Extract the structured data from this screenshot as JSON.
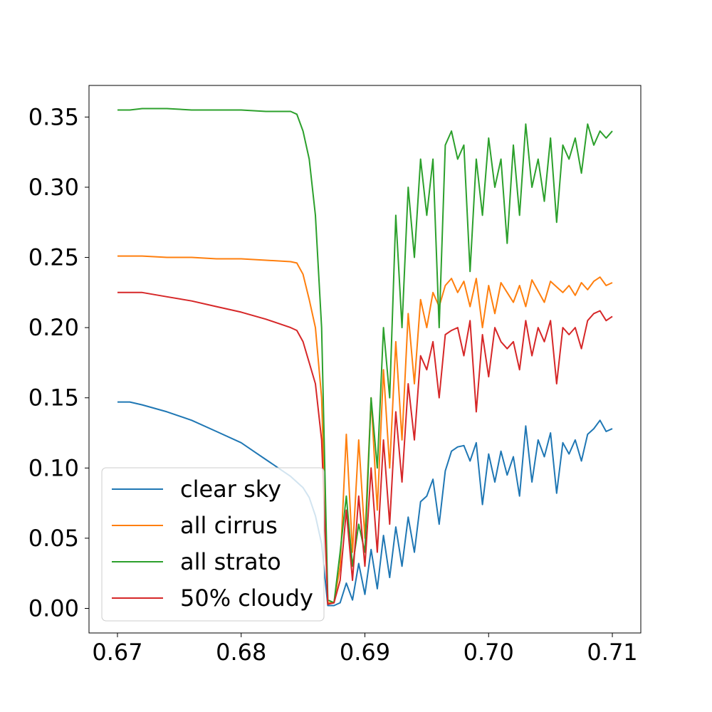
{
  "chart_data": {
    "type": "line",
    "title": "",
    "xlabel": "",
    "ylabel": "",
    "xlim": [
      0.6677,
      0.7123
    ],
    "ylim": [
      -0.0175,
      0.3725
    ],
    "xticks": [
      0.67,
      0.68,
      0.69,
      0.7,
      0.71
    ],
    "xtick_labels": [
      "0.67",
      "0.68",
      "0.69",
      "0.70",
      "0.71"
    ],
    "yticks": [
      0.0,
      0.05,
      0.1,
      0.15,
      0.2,
      0.25,
      0.3,
      0.35
    ],
    "ytick_labels": [
      "0.00",
      "0.05",
      "0.10",
      "0.15",
      "0.20",
      "0.25",
      "0.30",
      "0.35"
    ],
    "grid": false,
    "legend_position": "lower-left",
    "series": [
      {
        "name": "clear sky",
        "color": "#1f77b4",
        "x": [
          0.67,
          0.671,
          0.672,
          0.674,
          0.676,
          0.678,
          0.68,
          0.681,
          0.682,
          0.683,
          0.684,
          0.685,
          0.6855,
          0.686,
          0.6865,
          0.687,
          0.6875,
          0.688,
          0.6885,
          0.689,
          0.6895,
          0.69,
          0.6905,
          0.691,
          0.6915,
          0.692,
          0.6925,
          0.693,
          0.6935,
          0.694,
          0.6945,
          0.695,
          0.6955,
          0.696,
          0.6965,
          0.697,
          0.6975,
          0.698,
          0.6985,
          0.699,
          0.6995,
          0.7,
          0.7005,
          0.701,
          0.7015,
          0.702,
          0.7025,
          0.703,
          0.7035,
          0.704,
          0.7045,
          0.705,
          0.7055,
          0.706,
          0.7065,
          0.707,
          0.7075,
          0.708,
          0.7085,
          0.709,
          0.7095,
          0.71
        ],
        "y": [
          0.147,
          0.147,
          0.145,
          0.14,
          0.134,
          0.126,
          0.118,
          0.112,
          0.106,
          0.1,
          0.094,
          0.086,
          0.079,
          0.066,
          0.046,
          0.002,
          0.002,
          0.004,
          0.018,
          0.006,
          0.032,
          0.01,
          0.042,
          0.014,
          0.052,
          0.022,
          0.058,
          0.03,
          0.065,
          0.04,
          0.076,
          0.08,
          0.092,
          0.06,
          0.098,
          0.112,
          0.115,
          0.116,
          0.105,
          0.118,
          0.074,
          0.11,
          0.09,
          0.112,
          0.095,
          0.108,
          0.08,
          0.13,
          0.09,
          0.12,
          0.108,
          0.125,
          0.082,
          0.118,
          0.11,
          0.12,
          0.105,
          0.124,
          0.128,
          0.134,
          0.126,
          0.128
        ]
      },
      {
        "name": "all cirrus",
        "color": "#ff7f0e",
        "x": [
          0.67,
          0.671,
          0.672,
          0.674,
          0.676,
          0.678,
          0.68,
          0.682,
          0.684,
          0.6845,
          0.685,
          0.6855,
          0.686,
          0.6865,
          0.687,
          0.6875,
          0.688,
          0.6885,
          0.689,
          0.6895,
          0.69,
          0.6905,
          0.691,
          0.6915,
          0.692,
          0.6925,
          0.693,
          0.6935,
          0.694,
          0.6945,
          0.695,
          0.6955,
          0.696,
          0.6965,
          0.697,
          0.6975,
          0.698,
          0.6985,
          0.699,
          0.6995,
          0.7,
          0.7005,
          0.701,
          0.7015,
          0.702,
          0.7025,
          0.703,
          0.7035,
          0.704,
          0.7045,
          0.705,
          0.7055,
          0.706,
          0.7065,
          0.707,
          0.7075,
          0.708,
          0.7085,
          0.709,
          0.7095,
          0.71
        ],
        "y": [
          0.251,
          0.251,
          0.251,
          0.25,
          0.25,
          0.249,
          0.249,
          0.248,
          0.247,
          0.246,
          0.238,
          0.22,
          0.2,
          0.15,
          0.004,
          0.004,
          0.03,
          0.124,
          0.04,
          0.12,
          0.05,
          0.15,
          0.07,
          0.17,
          0.1,
          0.19,
          0.12,
          0.21,
          0.16,
          0.22,
          0.2,
          0.225,
          0.215,
          0.23,
          0.235,
          0.225,
          0.233,
          0.215,
          0.235,
          0.2,
          0.23,
          0.21,
          0.232,
          0.225,
          0.218,
          0.23,
          0.215,
          0.234,
          0.226,
          0.218,
          0.233,
          0.229,
          0.225,
          0.23,
          0.223,
          0.232,
          0.227,
          0.233,
          0.236,
          0.23,
          0.232
        ]
      },
      {
        "name": "all strato",
        "color": "#2ca02c",
        "x": [
          0.67,
          0.671,
          0.672,
          0.674,
          0.676,
          0.678,
          0.68,
          0.682,
          0.684,
          0.6845,
          0.685,
          0.6855,
          0.686,
          0.6865,
          0.687,
          0.6875,
          0.688,
          0.6885,
          0.689,
          0.6895,
          0.69,
          0.6905,
          0.691,
          0.6915,
          0.692,
          0.6925,
          0.693,
          0.6935,
          0.694,
          0.6945,
          0.695,
          0.6955,
          0.696,
          0.6965,
          0.697,
          0.6975,
          0.698,
          0.6985,
          0.699,
          0.6995,
          0.7,
          0.7005,
          0.701,
          0.7015,
          0.702,
          0.7025,
          0.703,
          0.7035,
          0.704,
          0.7045,
          0.705,
          0.7055,
          0.706,
          0.7065,
          0.707,
          0.7075,
          0.708,
          0.7085,
          0.709,
          0.7095,
          0.71
        ],
        "y": [
          0.355,
          0.355,
          0.356,
          0.356,
          0.355,
          0.355,
          0.355,
          0.354,
          0.354,
          0.352,
          0.34,
          0.32,
          0.28,
          0.2,
          0.006,
          0.004,
          0.04,
          0.08,
          0.03,
          0.06,
          0.04,
          0.15,
          0.1,
          0.2,
          0.15,
          0.28,
          0.2,
          0.3,
          0.25,
          0.32,
          0.28,
          0.32,
          0.2,
          0.33,
          0.34,
          0.32,
          0.33,
          0.24,
          0.32,
          0.28,
          0.335,
          0.3,
          0.32,
          0.26,
          0.33,
          0.28,
          0.345,
          0.3,
          0.32,
          0.29,
          0.335,
          0.275,
          0.33,
          0.32,
          0.335,
          0.31,
          0.345,
          0.33,
          0.34,
          0.335,
          0.34
        ]
      },
      {
        "name": "50% cloudy",
        "color": "#d62728",
        "x": [
          0.67,
          0.671,
          0.672,
          0.674,
          0.676,
          0.678,
          0.68,
          0.682,
          0.683,
          0.684,
          0.6845,
          0.685,
          0.6855,
          0.686,
          0.6865,
          0.687,
          0.6875,
          0.688,
          0.6885,
          0.689,
          0.6895,
          0.69,
          0.6905,
          0.691,
          0.6915,
          0.692,
          0.6925,
          0.693,
          0.6935,
          0.694,
          0.6945,
          0.695,
          0.6955,
          0.696,
          0.6965,
          0.697,
          0.6975,
          0.698,
          0.6985,
          0.699,
          0.6995,
          0.7,
          0.7005,
          0.701,
          0.7015,
          0.702,
          0.7025,
          0.703,
          0.7035,
          0.704,
          0.7045,
          0.705,
          0.7055,
          0.706,
          0.7065,
          0.707,
          0.7075,
          0.708,
          0.7085,
          0.709,
          0.7095,
          0.71
        ],
        "y": [
          0.225,
          0.225,
          0.225,
          0.222,
          0.219,
          0.215,
          0.211,
          0.206,
          0.203,
          0.2,
          0.198,
          0.19,
          0.175,
          0.16,
          0.12,
          0.003,
          0.004,
          0.02,
          0.07,
          0.02,
          0.08,
          0.03,
          0.1,
          0.04,
          0.12,
          0.06,
          0.14,
          0.09,
          0.16,
          0.12,
          0.18,
          0.17,
          0.19,
          0.15,
          0.195,
          0.198,
          0.2,
          0.18,
          0.205,
          0.14,
          0.195,
          0.165,
          0.2,
          0.19,
          0.185,
          0.19,
          0.17,
          0.205,
          0.18,
          0.2,
          0.19,
          0.205,
          0.16,
          0.2,
          0.195,
          0.2,
          0.185,
          0.205,
          0.21,
          0.212,
          0.205,
          0.208
        ]
      }
    ]
  }
}
